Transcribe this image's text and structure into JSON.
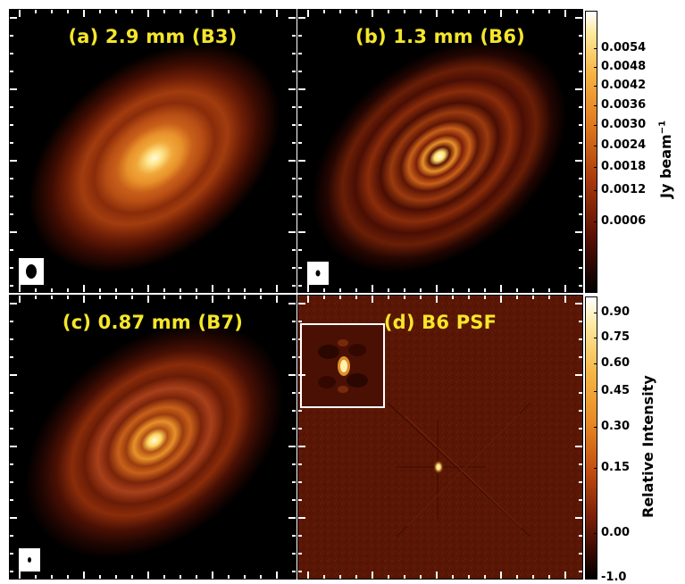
{
  "panels": {
    "a": {
      "title": "(a) 2.9 mm (B3)"
    },
    "b": {
      "title": "(b) 1.3 mm (B6)"
    },
    "c": {
      "title": "(c) 0.87 mm (B7)"
    },
    "d": {
      "title": "(d) B6 PSF"
    }
  },
  "colorbar_top": {
    "title": "Jy beam",
    "title_exponent": "−1",
    "ticks": [
      "0.0054",
      "0.0048",
      "0.0042",
      "0.0036",
      "0.0030",
      "0.0024",
      "0.0018",
      "0.0012",
      "0.0006"
    ]
  },
  "colorbar_bottom": {
    "title": "Relative Intensity",
    "ticks": [
      "0.90",
      "0.75",
      "0.60",
      "0.45",
      "0.30",
      "0.15",
      "0.00",
      "-1.0"
    ]
  },
  "colors": {
    "title_yellow": "#f5e62a",
    "disk_core": "#fff6b0",
    "disk_mid": "#e08a20",
    "disk_outer": "#6a1a06",
    "background": "#000000",
    "psf_background": "#5a1604"
  }
}
